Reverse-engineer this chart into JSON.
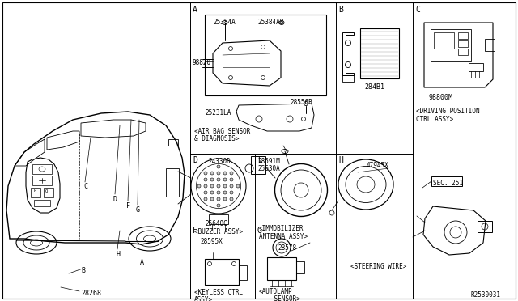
{
  "bg_color": "#ffffff",
  "diagram_ref": "R2530031",
  "part_numbers": {
    "main_module": "98820",
    "pn_25384A": "25384A",
    "pn_25384AB": "25384AB",
    "pn_28556B": "28556B",
    "pn_25231LA": "25231LA",
    "pn_284B1": "284B1",
    "pn_98800M": "98800M",
    "pn_24330D": "24330D",
    "pn_25640C": "25640C",
    "pn_28591M": "28591M",
    "pn_25630A": "25630A",
    "pn_28595X": "28595X",
    "pn_28578": "28578",
    "pn_47945X": "47945X",
    "pn_28268": "28268"
  },
  "labels": {
    "airbag1": "<AIR BAG SENSOR",
    "airbag2": "& DIAGNOSIS>",
    "buzzer": "<BUZZER ASSY>",
    "immobilizer1": "<IMMOBILIZER",
    "immobilizer2": "ANTENNA ASSY>",
    "keyless1": "<KEYLESS CTRL",
    "keyless2": "ASSY>",
    "autolamp1": "<AUTOLAMP",
    "autolamp2": "    SENSOR>",
    "steering": "<STEERING WIRE>",
    "driving1": "<DRIVING POSITION",
    "driving2": "CTRL ASSY>",
    "sec251": "SEC. 251"
  }
}
